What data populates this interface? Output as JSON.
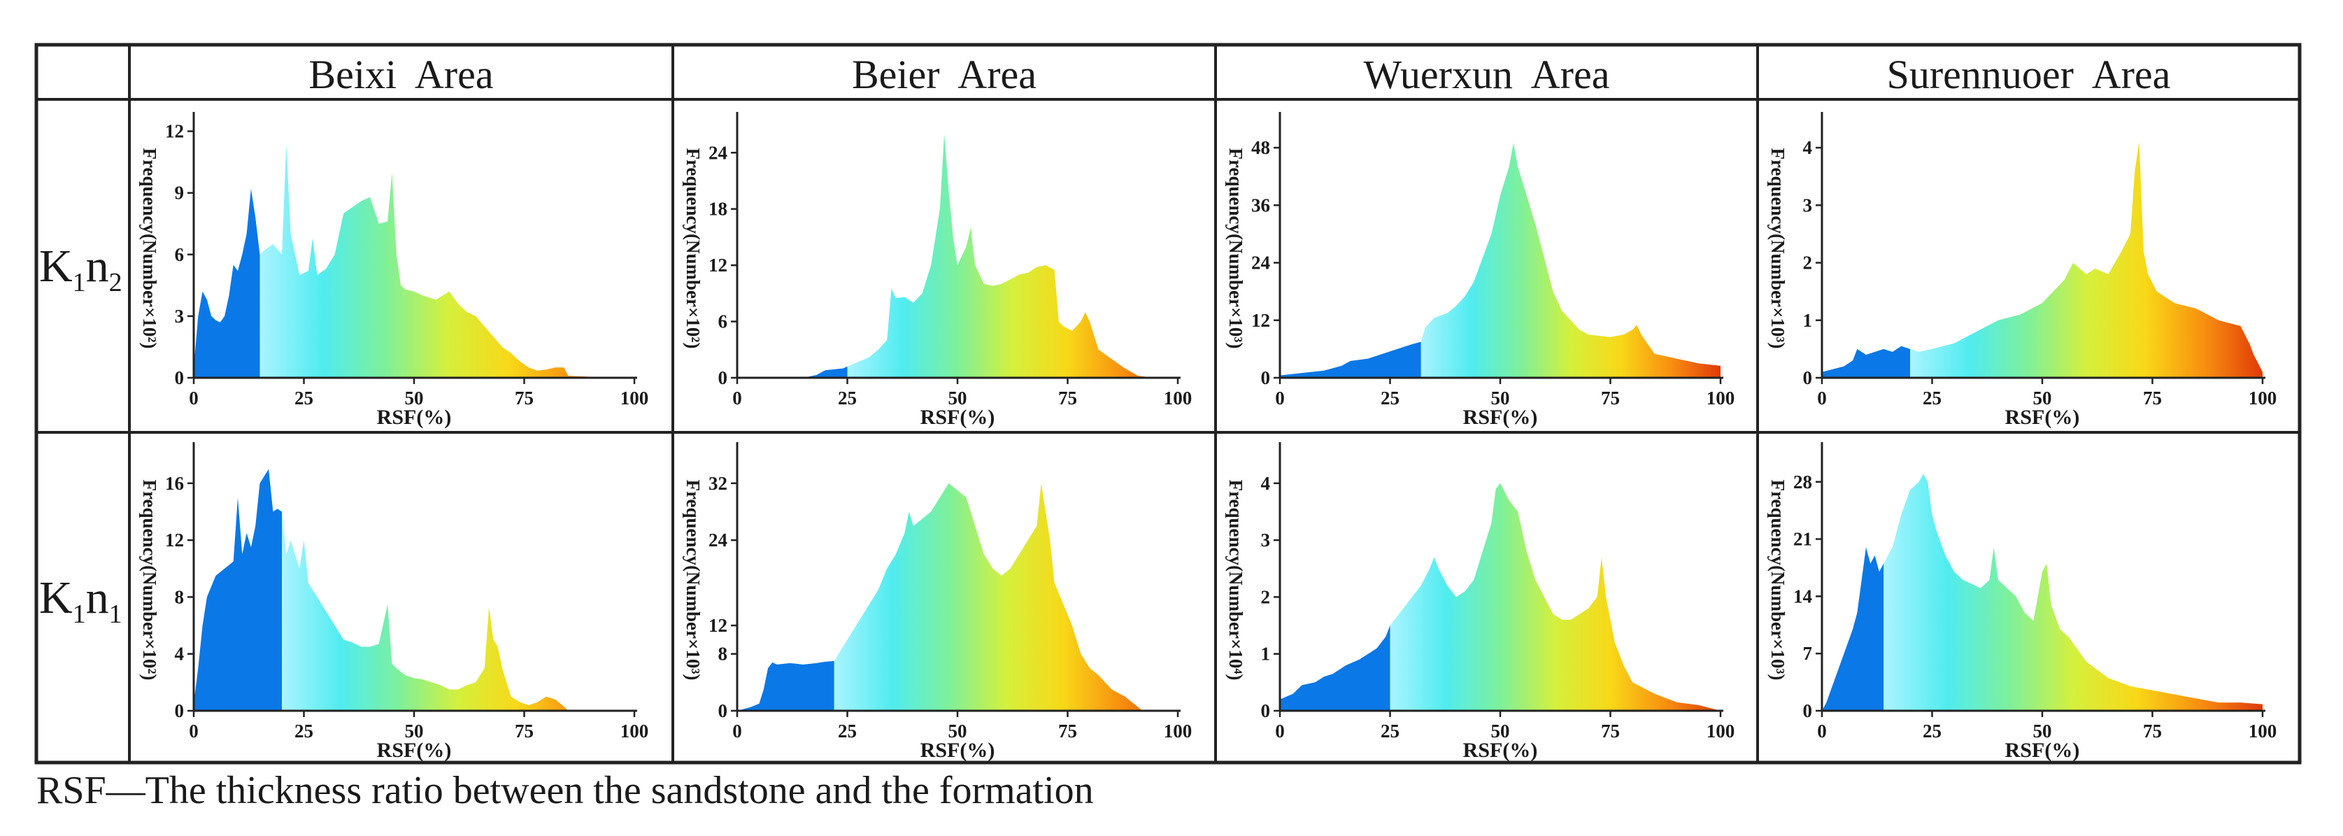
{
  "figure": {
    "column_headers": [
      "Beixi  Area",
      "Beier  Area",
      "Wuerxun  Area",
      "Surennuoer  Area"
    ],
    "row_labels": [
      {
        "main": "K",
        "sub1": "1",
        "mid": "n",
        "sub2": "2"
      },
      {
        "main": "K",
        "sub1": "1",
        "mid": "n",
        "sub2": "1"
      }
    ],
    "caption": "RSF—The thickness ratio between the sandstone and the formation"
  },
  "colors": {
    "blue": "#0a78e6",
    "ramp": [
      "#aaf4ff",
      "#50ecf0",
      "#7ef09a",
      "#d4f03c",
      "#f8d818",
      "#f89010",
      "#e03a08"
    ],
    "line": "#222222"
  },
  "chart_data": [
    {
      "type": "area",
      "id": "beixi-k1n2",
      "title": "",
      "xlabel": "RSF(%)",
      "ylabel": "Frequency(Number×10²)",
      "xlim": [
        0,
        100
      ],
      "ylim": [
        0,
        12.6
      ],
      "xticks": [
        0,
        25,
        50,
        75,
        100
      ],
      "yticks": [
        0,
        3,
        6,
        9,
        12
      ],
      "blue_until": 15,
      "x": [
        0,
        1,
        2,
        3,
        4,
        5,
        6,
        7,
        8,
        9,
        10,
        11,
        12,
        13,
        14,
        15,
        16,
        18,
        20,
        21,
        22,
        24,
        26,
        27,
        28,
        30,
        32,
        34,
        36,
        38,
        40,
        42,
        44,
        45,
        46,
        47,
        48,
        50,
        52,
        55,
        58,
        60,
        62,
        64,
        66,
        68,
        70,
        72,
        74,
        76,
        78,
        80,
        82,
        84,
        85,
        90,
        100
      ],
      "y": [
        0.5,
        3,
        4.2,
        3.8,
        3,
        2.8,
        2.7,
        3,
        4,
        5.5,
        5.2,
        6,
        7,
        9.2,
        7.8,
        6,
        6.2,
        6.5,
        6,
        11.4,
        7,
        5,
        5.2,
        6.8,
        5,
        5.3,
        6,
        8,
        8.3,
        8.6,
        8.8,
        7.5,
        7.6,
        10,
        6,
        4.5,
        4.3,
        4.2,
        4,
        3.8,
        4.2,
        3.6,
        3.2,
        3,
        2.5,
        2,
        1.5,
        1.2,
        0.8,
        0.5,
        0.35,
        0.4,
        0.5,
        0.5,
        0.1,
        0.05,
        0
      ]
    },
    {
      "type": "area",
      "id": "beier-k1n2",
      "title": "",
      "xlabel": "RSF(%)",
      "ylabel": "Frequency(Number×10²)",
      "xlim": [
        0,
        100
      ],
      "ylim": [
        0,
        27.6
      ],
      "xticks": [
        0,
        25,
        50,
        75,
        100
      ],
      "yticks": [
        0,
        6,
        12,
        18,
        24
      ],
      "blue_until": 25,
      "x": [
        0,
        15,
        18,
        20,
        22,
        24,
        25,
        28,
        30,
        32,
        34,
        35,
        36,
        38,
        40,
        42,
        44,
        46,
        47,
        48,
        49,
        50,
        52,
        53,
        54,
        56,
        58,
        60,
        62,
        64,
        66,
        68,
        70,
        72,
        73,
        74,
        76,
        78,
        79,
        80,
        82,
        85,
        88,
        91,
        95,
        100
      ],
      "y": [
        0,
        0,
        0.3,
        0.8,
        0.9,
        1,
        1.2,
        1.8,
        2.2,
        3,
        4,
        9.5,
        8.5,
        8.6,
        8,
        9,
        12,
        18,
        26,
        20,
        15,
        12,
        14,
        16,
        12,
        10,
        9.8,
        10,
        10.5,
        11,
        11.2,
        11.8,
        12,
        11.5,
        6,
        5.5,
        5,
        6,
        7,
        6,
        3,
        2,
        1,
        0.2,
        0,
        0
      ]
    },
    {
      "type": "area",
      "id": "wuerxun-k1n2",
      "title": "",
      "xlabel": "RSF(%)",
      "ylabel": "Frequency(Number×10³)",
      "xlim": [
        0,
        100
      ],
      "ylim": [
        0,
        54
      ],
      "xticks": [
        0,
        25,
        50,
        75,
        100
      ],
      "yticks": [
        0,
        12,
        24,
        36,
        48
      ],
      "blue_until": 32,
      "x": [
        0,
        5,
        10,
        14,
        16,
        20,
        25,
        30,
        32,
        33,
        35,
        38,
        40,
        42,
        44,
        46,
        48,
        50,
        52,
        53,
        54,
        56,
        58,
        60,
        62,
        64,
        66,
        68,
        70,
        75,
        78,
        80,
        81,
        82,
        85,
        90,
        95,
        100
      ],
      "y": [
        0.5,
        1,
        1.5,
        2.5,
        3.5,
        4,
        5.5,
        7,
        7.5,
        10.5,
        12.5,
        13.5,
        15,
        17,
        20,
        25,
        30,
        38,
        44,
        49,
        44,
        38,
        32,
        25,
        18,
        14,
        12,
        10,
        9,
        8.5,
        9,
        10,
        11,
        9,
        5,
        4,
        3,
        2.5
      ]
    },
    {
      "type": "area",
      "id": "surennuoer-k1n2",
      "title": "",
      "xlabel": "RSF(%)",
      "ylabel": "Frequency(Number×10³)",
      "xlim": [
        0,
        100
      ],
      "ylim": [
        0,
        4.5
      ],
      "xticks": [
        0,
        25,
        50,
        75,
        100
      ],
      "yticks": [
        0,
        1,
        2,
        3,
        4
      ],
      "blue_until": 20,
      "x": [
        0,
        5,
        7,
        8,
        10,
        12,
        14,
        16,
        18,
        20,
        22,
        25,
        30,
        35,
        40,
        45,
        50,
        55,
        57,
        60,
        62,
        65,
        68,
        70,
        71,
        72,
        73,
        74,
        76,
        80,
        85,
        90,
        95,
        97,
        98,
        100
      ],
      "y": [
        0.1,
        0.2,
        0.3,
        0.5,
        0.4,
        0.45,
        0.5,
        0.45,
        0.55,
        0.5,
        0.45,
        0.5,
        0.6,
        0.8,
        1,
        1.1,
        1.3,
        1.7,
        2,
        1.8,
        1.9,
        1.8,
        2.2,
        2.5,
        3.6,
        4.1,
        2.2,
        1.8,
        1.5,
        1.3,
        1.2,
        1,
        0.9,
        0.6,
        0.4,
        0.1
      ]
    },
    {
      "type": "area",
      "id": "beixi-k1n1",
      "title": "",
      "xlabel": "RSF(%)",
      "ylabel": "Frequency(Number×10²)",
      "xlim": [
        0,
        100
      ],
      "ylim": [
        0,
        18.4
      ],
      "xticks": [
        0,
        25,
        50,
        75,
        100
      ],
      "yticks": [
        0,
        4,
        8,
        12,
        16
      ],
      "blue_until": 20,
      "x": [
        0,
        1,
        2,
        3,
        5,
        7,
        9,
        10,
        11,
        12,
        13,
        14,
        15,
        16,
        17,
        18,
        19,
        20,
        21,
        22,
        24,
        25,
        26,
        28,
        30,
        32,
        34,
        36,
        38,
        40,
        42,
        44,
        45,
        46,
        48,
        50,
        52,
        54,
        56,
        58,
        60,
        62,
        64,
        66,
        67,
        68,
        69,
        70,
        72,
        74,
        76,
        78,
        80,
        82,
        84,
        85,
        100
      ],
      "y": [
        0.5,
        3,
        6,
        8,
        9.5,
        10,
        10.5,
        15,
        11,
        12.5,
        11.5,
        13,
        16,
        16.5,
        17,
        14,
        14.2,
        14,
        11,
        12,
        10,
        12,
        9,
        8,
        7,
        6,
        5,
        4.8,
        4.5,
        4.5,
        4.7,
        7.5,
        3.3,
        3,
        2.5,
        2.3,
        2.2,
        2,
        1.8,
        1.5,
        1.5,
        1.8,
        2,
        3,
        7.3,
        5,
        4.5,
        3,
        1,
        0.6,
        0.4,
        0.6,
        1,
        0.8,
        0.3,
        0,
        0
      ]
    },
    {
      "type": "area",
      "id": "beier-k1n1",
      "title": "",
      "xlabel": "RSF(%)",
      "ylabel": "Frequency(Number×10³)",
      "xlim": [
        0,
        100
      ],
      "ylim": [
        0,
        36.8
      ],
      "xticks": [
        0,
        25,
        50,
        75,
        100
      ],
      "yticks": [
        0,
        8,
        12,
        24,
        32
      ],
      "blue_until": 22,
      "x": [
        0,
        3,
        5,
        6,
        7,
        8,
        9,
        12,
        15,
        18,
        20,
        22,
        24,
        26,
        28,
        30,
        32,
        34,
        36,
        38,
        39,
        40,
        42,
        44,
        46,
        48,
        50,
        52,
        54,
        56,
        58,
        60,
        62,
        64,
        66,
        68,
        69,
        70,
        71,
        72,
        74,
        76,
        78,
        80,
        82,
        85,
        88,
        90,
        92,
        95,
        100
      ],
      "y": [
        0,
        0.5,
        1,
        3,
        6,
        6.8,
        6.5,
        6.7,
        6.5,
        6.7,
        6.9,
        7,
        9,
        11,
        13,
        15,
        17,
        20,
        22,
        25,
        28,
        26,
        27,
        28,
        30,
        32,
        31,
        30,
        26,
        22,
        20,
        19,
        20,
        22,
        24,
        26,
        32,
        28,
        24,
        18,
        15,
        12,
        8,
        6,
        5,
        3,
        2,
        1,
        0,
        0,
        0
      ]
    },
    {
      "type": "area",
      "id": "wuerxun-k1n1",
      "title": "",
      "xlabel": "RSF(%)",
      "ylabel": "Frequency(Number×10⁴)",
      "xlim": [
        0,
        100
      ],
      "ylim": [
        0,
        4.6
      ],
      "xticks": [
        0,
        25,
        50,
        75,
        100
      ],
      "yticks": [
        0,
        1,
        2,
        3,
        4
      ],
      "blue_until": 25,
      "x": [
        0,
        3,
        5,
        8,
        10,
        12,
        15,
        18,
        20,
        22,
        24,
        25,
        26,
        28,
        30,
        32,
        34,
        35,
        36,
        38,
        40,
        42,
        44,
        46,
        48,
        49,
        50,
        52,
        54,
        56,
        58,
        60,
        62,
        64,
        66,
        68,
        70,
        72,
        73,
        74,
        76,
        78,
        80,
        85,
        90,
        95,
        100
      ],
      "y": [
        0.2,
        0.3,
        0.45,
        0.5,
        0.6,
        0.65,
        0.8,
        0.9,
        1,
        1.1,
        1.3,
        1.5,
        1.6,
        1.8,
        2,
        2.2,
        2.5,
        2.7,
        2.5,
        2.2,
        2,
        2.1,
        2.3,
        2.8,
        3.3,
        3.9,
        4,
        3.7,
        3.5,
        2.8,
        2.3,
        2,
        1.7,
        1.6,
        1.6,
        1.7,
        1.8,
        2,
        2.7,
        2,
        1.2,
        0.8,
        0.5,
        0.3,
        0.15,
        0.1,
        0
      ]
    },
    {
      "type": "area",
      "id": "surennuoer-k1n1",
      "title": "",
      "xlabel": "RSF(%)",
      "ylabel": "Frequency(Number×10³)",
      "xlim": [
        0,
        100
      ],
      "ylim": [
        0,
        32
      ],
      "xticks": [
        0,
        25,
        50,
        75,
        100
      ],
      "yticks": [
        0,
        7,
        14,
        21,
        28
      ],
      "blue_until": 14,
      "x": [
        0,
        1,
        3,
        5,
        7,
        8,
        9,
        10,
        11,
        12,
        13,
        14,
        16,
        18,
        20,
        22,
        23,
        24,
        25,
        26,
        28,
        30,
        32,
        34,
        36,
        38,
        39,
        40,
        42,
        44,
        46,
        48,
        50,
        51,
        52,
        54,
        56,
        60,
        65,
        70,
        75,
        80,
        85,
        90,
        95,
        100
      ],
      "y": [
        0,
        1,
        4,
        7,
        10,
        12,
        16,
        20,
        18,
        19,
        17,
        18,
        20,
        24,
        27,
        28,
        29,
        28,
        24,
        22,
        19,
        17,
        16,
        15.5,
        15,
        16,
        20,
        16,
        15,
        14,
        12,
        11,
        17,
        18,
        13,
        10,
        9,
        6,
        4,
        3,
        2.5,
        2,
        1.5,
        1,
        1,
        0.8
      ]
    }
  ]
}
